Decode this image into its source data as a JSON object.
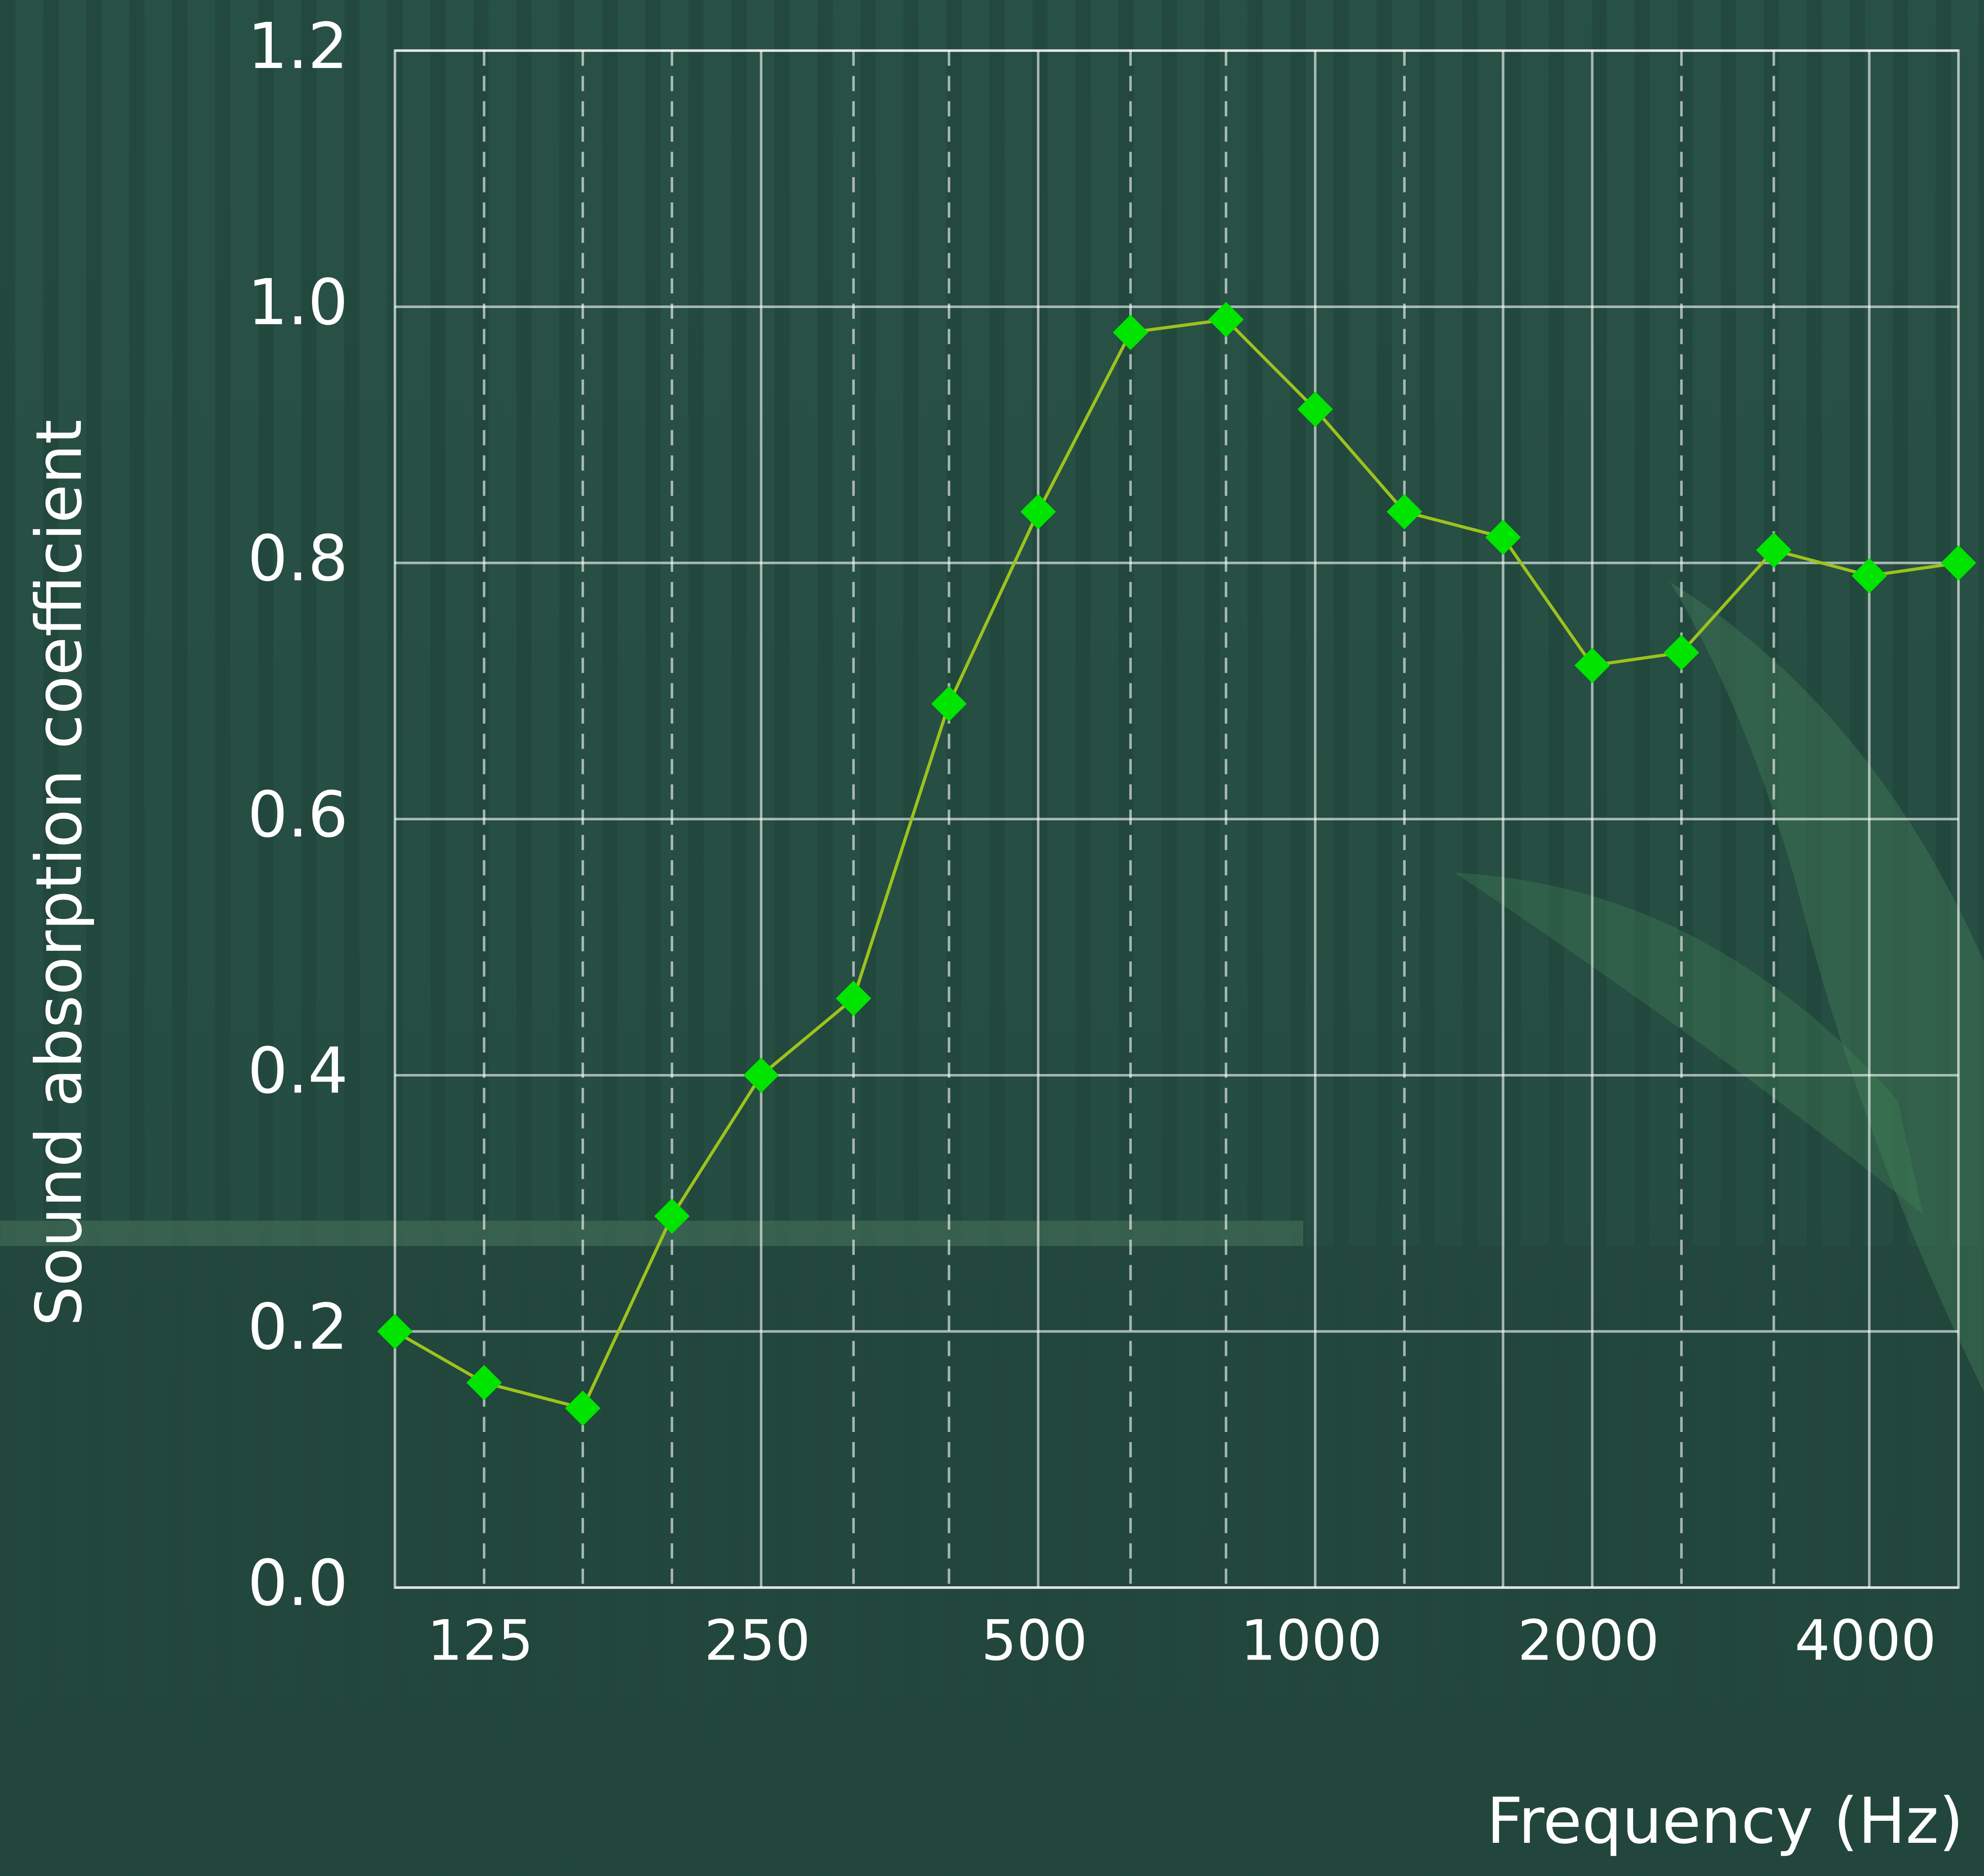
{
  "chart_data": {
    "type": "line",
    "y_label": "Sound absorption coefficient",
    "x_label": "Frequency (Hz)",
    "x_scale": "log",
    "x": [
      100,
      125,
      160,
      200,
      250,
      315,
      400,
      500,
      630,
      800,
      1000,
      1250,
      1600,
      2000,
      2500,
      3150,
      4000,
      5000
    ],
    "series": [
      {
        "color": "#9cc21e",
        "marker_color": "#00e400",
        "values": [
          0.2,
          0.16,
          0.14,
          0.29,
          0.4,
          0.46,
          0.69,
          0.84,
          0.98,
          0.99,
          0.92,
          0.84,
          0.82,
          0.72,
          0.73,
          0.81,
          0.79,
          0.8
        ]
      }
    ],
    "xlim": [
      100,
      5000
    ],
    "xticks": [
      125,
      250,
      500,
      1000,
      2000,
      4000
    ],
    "x_grid_solid": [
      250,
      500,
      1000,
      1600,
      2000,
      4000
    ],
    "x_grid_dashed": [
      125,
      160,
      200,
      315,
      400,
      630,
      800,
      1250,
      2500,
      3150
    ],
    "ylim": [
      0,
      1.2
    ],
    "yticks": [
      {
        "value": 0,
        "label": "0.0"
      },
      0.2,
      0.4,
      0.6,
      0.8,
      {
        "value": 1,
        "label": "1.0"
      },
      1.2
    ],
    "grid": true
  }
}
